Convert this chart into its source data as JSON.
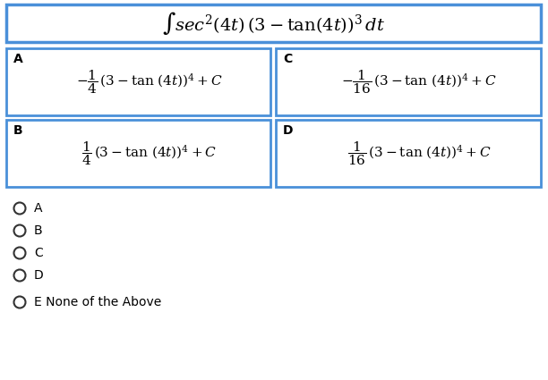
{
  "title": "$\\int sec^2(4t)\\,(3 - \\tan(4t))^3\\,dt$",
  "option_A_neg": "$-\\dfrac{1}{4}\\,(3 - \\tan\\,(4t))^4 + C$",
  "option_B_pos": "$\\dfrac{1}{4}\\,(3 - \\tan\\,(4t))^4 + C$",
  "option_C_neg": "$-\\dfrac{1}{16}\\,(3 - \\tan\\,(4t))^4 + C$",
  "option_D_pos": "$\\dfrac{1}{16}\\,(3 - \\tan\\,(4t))^4 + C$",
  "border_color": "#4A90D9",
  "bg_color": "#FFFFFF",
  "text_color": "#000000",
  "title_fontsize": 14,
  "option_fontsize": 11,
  "label_fontsize": 10,
  "choice_fontsize": 10
}
